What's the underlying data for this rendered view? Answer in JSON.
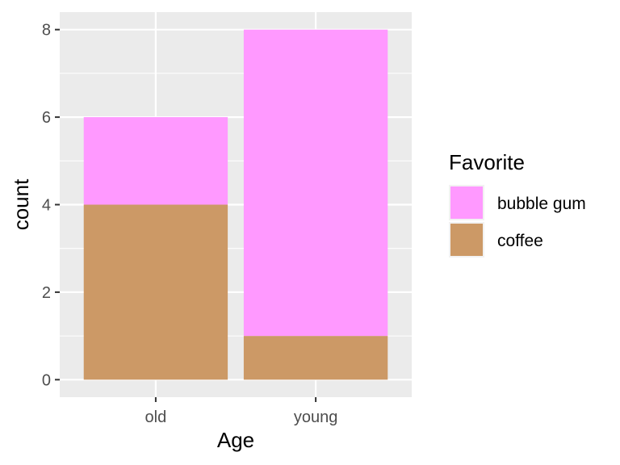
{
  "chart_data": {
    "type": "bar",
    "stacked": true,
    "categories": [
      "old",
      "young"
    ],
    "series": [
      {
        "name": "bubble gum",
        "values": [
          2,
          7
        ],
        "color": "#FF99FF"
      },
      {
        "name": "coffee",
        "values": [
          4,
          1
        ],
        "color": "#CC9966"
      }
    ],
    "xlabel": "Age",
    "ylabel": "count",
    "ylim": [
      -0.4,
      8.4
    ],
    "yticks": [
      0,
      2,
      4,
      6,
      8
    ],
    "ytick_labels": [
      "0",
      "2",
      "4",
      "6",
      "8"
    ],
    "grid": true,
    "panel_background": "#EBEBEB",
    "legend": {
      "title": "Favorite",
      "position": "right"
    }
  }
}
